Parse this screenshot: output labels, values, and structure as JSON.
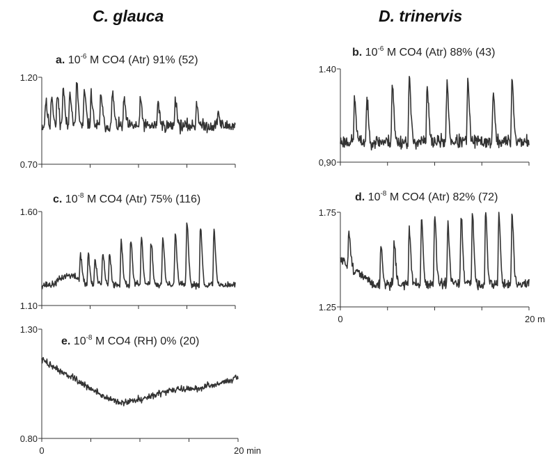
{
  "figure": {
    "column_titles": [
      "C. glauca",
      "D. trinervis"
    ]
  },
  "chart_data": [
    {
      "id": "a",
      "type": "line",
      "column": "C. glauca",
      "title": {
        "letter": "a.",
        "conc_base": "10",
        "conc_exp": "-6",
        "rest": " M CO4 (Atr) 91% (52)"
      },
      "ylim": [
        0.7,
        1.2
      ],
      "y_tick_labels": [
        "0.70",
        "1.20"
      ],
      "x_range_min": [
        0,
        20
      ],
      "x_tick_labels": [],
      "signal": {
        "baseline": 0.92,
        "noise": 0.028,
        "seed": 11,
        "dense_until": 0.35,
        "peaks_min": [
          0.4,
          1.0,
          1.6,
          2.2,
          2.9,
          3.6,
          4.4,
          5.1,
          6.1,
          7.3,
          8.5,
          10.2,
          12.0,
          13.8,
          16.0,
          18.2
        ],
        "peak_heights": [
          1.06,
          1.1,
          1.1,
          1.14,
          1.13,
          1.16,
          1.12,
          1.1,
          1.11,
          1.11,
          1.07,
          1.07,
          1.06,
          1.08,
          1.05,
          1.0
        ]
      }
    },
    {
      "id": "b",
      "type": "line",
      "column": "D. trinervis",
      "title": {
        "letter": "b.",
        "conc_base": "10",
        "conc_exp": "-6",
        "rest": " M CO4 (Atr) 88% (43)"
      },
      "ylim": [
        0.9,
        1.4
      ],
      "y_tick_labels": [
        "0,90",
        "1.40"
      ],
      "x_range_min": [
        0,
        20
      ],
      "x_tick_labels": [],
      "signal": {
        "baseline": 1.01,
        "noise": 0.028,
        "seed": 23,
        "dense_until": 0,
        "peaks_min": [
          1.5,
          2.8,
          5.5,
          7.3,
          9.2,
          11.3,
          13.5,
          16.2,
          18.2
        ],
        "peak_heights": [
          1.24,
          1.23,
          1.32,
          1.35,
          1.3,
          1.33,
          1.33,
          1.27,
          1.35
        ]
      }
    },
    {
      "id": "c",
      "type": "line",
      "column": "C. glauca",
      "title": {
        "letter": "c.",
        "conc_base": "10",
        "conc_exp": "-8",
        "rest": " M CO4 (Atr) 75% (116)"
      },
      "ylim": [
        1.1,
        1.6
      ],
      "y_tick_labels": [
        "1.10",
        "1.60"
      ],
      "x_range_min": [
        0,
        20
      ],
      "x_tick_labels": [],
      "signal": {
        "baseline": 1.21,
        "noise": 0.014,
        "seed": 37,
        "dense_until": 0,
        "bump": {
          "start_min": 1.2,
          "end_min": 4.5,
          "height": 0.05
        },
        "peaks_min": [
          4.0,
          4.8,
          5.5,
          6.3,
          7.0,
          8.2,
          9.2,
          10.3,
          11.3,
          12.5,
          13.8,
          15.0,
          16.4,
          17.8
        ],
        "peak_heights": [
          1.35,
          1.37,
          1.34,
          1.38,
          1.37,
          1.45,
          1.45,
          1.45,
          1.44,
          1.46,
          1.49,
          1.54,
          1.52,
          1.5
        ]
      }
    },
    {
      "id": "d",
      "type": "line",
      "column": "D. trinervis",
      "title": {
        "letter": "d.",
        "conc_base": "10",
        "conc_exp": "-8",
        "rest": " M CO4 (Atr) 82% (72)"
      },
      "ylim": [
        1.25,
        1.75
      ],
      "y_tick_labels": [
        "1.25",
        "1.75"
      ],
      "x_range_min": [
        0,
        20
      ],
      "x_tick_labels": [
        "0",
        "20 min"
      ],
      "signal": {
        "baseline": 1.37,
        "noise": 0.02,
        "seed": 51,
        "dense_until": 0,
        "start_level": 1.5,
        "decay_min": 3.5,
        "peaks_min": [
          0.9,
          4.3,
          5.7,
          7.3,
          8.6,
          10.0,
          11.4,
          12.8,
          14.0,
          15.4,
          16.8,
          18.2
        ],
        "peak_heights": [
          1.56,
          1.57,
          1.6,
          1.66,
          1.72,
          1.73,
          1.68,
          1.74,
          1.74,
          1.75,
          1.74,
          1.73
        ]
      }
    },
    {
      "id": "e",
      "type": "line",
      "column": "C. glauca",
      "title": {
        "letter": "e.",
        "conc_base": "10",
        "conc_exp": "-8",
        "rest": " M CO4 (RH) 0% (20)"
      },
      "ylim": [
        0.8,
        1.3
      ],
      "y_tick_labels": [
        "1.30",
        "0.80"
      ],
      "x_range_min": [
        0,
        20
      ],
      "x_tick_labels": [
        "0",
        "20 min"
      ],
      "signal": {
        "noise": 0.012,
        "seed": 73,
        "dense_until": 0,
        "trend_x": [
          0,
          3,
          6,
          8,
          10,
          13,
          16,
          18,
          20
        ],
        "trend_y": [
          1.16,
          1.08,
          1.0,
          0.96,
          0.98,
          1.02,
          1.03,
          1.05,
          1.08
        ],
        "peaks_min": [],
        "peak_heights": []
      }
    }
  ]
}
